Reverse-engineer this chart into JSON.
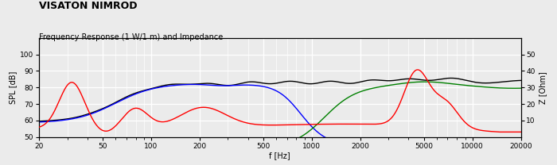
{
  "title": "VISATON NIMROD",
  "subtitle": "Frequency Response (1 W/1 m) and Impedance",
  "ylabel_left": "SPL [dB]",
  "ylabel_right": "Z [Ohm]",
  "xlabel": "f [Hz]",
  "xlim": [
    20,
    20000
  ],
  "ylim_left": [
    50,
    110
  ],
  "ylim_right": [
    0,
    60
  ],
  "yticks_left": [
    50,
    60,
    70,
    80,
    90,
    100
  ],
  "yticks_right": [
    10,
    20,
    30,
    40,
    50
  ],
  "xticks": [
    20,
    50,
    100,
    200,
    500,
    1000,
    2000,
    5000,
    10000,
    20000
  ],
  "xtick_labels": [
    "20",
    "50",
    "100",
    "200",
    "500",
    "1000",
    "2000",
    "5000",
    "10000",
    "20000"
  ],
  "bg_color": "#ebebeb",
  "grid_color": "#ffffff",
  "title_fontsize": 9,
  "subtitle_fontsize": 7,
  "label_fontsize": 7,
  "tick_fontsize": 6.5
}
